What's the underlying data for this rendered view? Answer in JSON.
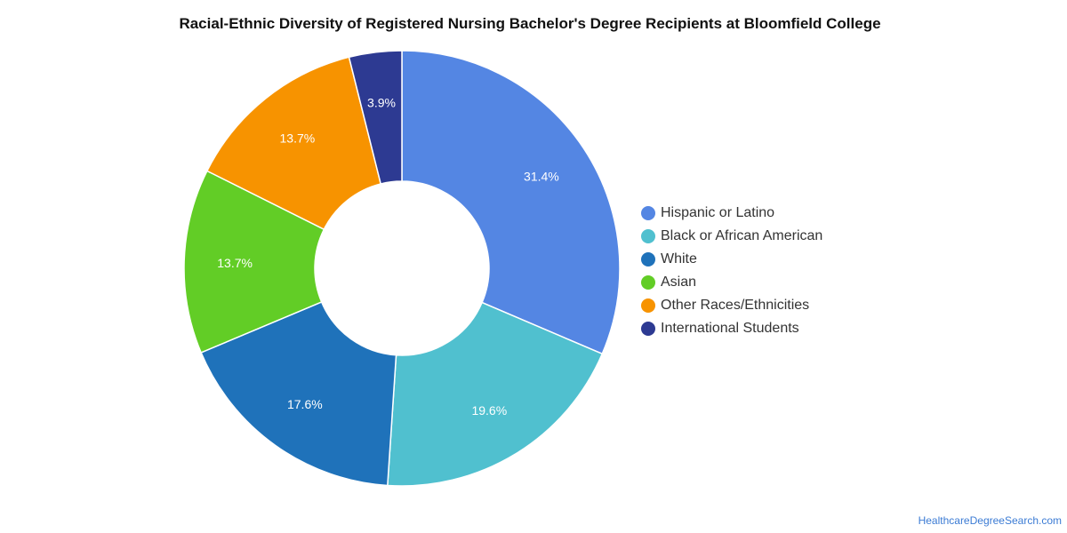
{
  "chart_data": {
    "type": "pie",
    "subtype": "donut",
    "title": "Racial-Ethnic Diversity of Registered Nursing Bachelor's Degree Recipients at Bloomfield College",
    "legend_placement": "right",
    "slices": [
      {
        "label": "Hispanic or Latino",
        "value": 31.4,
        "display": "31.4%",
        "color": "#5486e3"
      },
      {
        "label": "Black or African American",
        "value": 19.6,
        "display": "19.6%",
        "color": "#50c0cf"
      },
      {
        "label": "White",
        "value": 17.6,
        "display": "17.6%",
        "color": "#1f72ba"
      },
      {
        "label": "Asian",
        "value": 13.7,
        "display": "13.7%",
        "color": "#62cd26"
      },
      {
        "label": "Other Races/Ethnicities",
        "value": 13.7,
        "display": "13.7%",
        "color": "#f79300"
      },
      {
        "label": "International Students",
        "value": 3.9,
        "display": "3.9%",
        "color": "#2d3a92"
      }
    ]
  },
  "source": {
    "text": "HealthcareDegreeSearch.com"
  }
}
